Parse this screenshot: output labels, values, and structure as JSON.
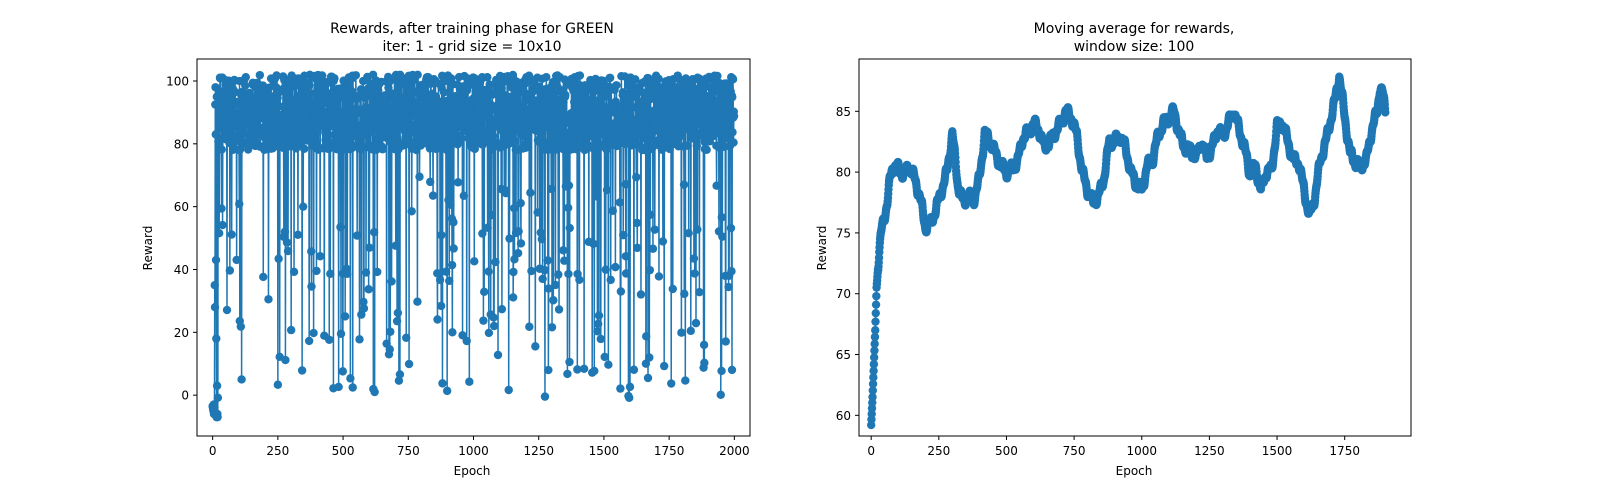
{
  "chart_data": [
    {
      "type": "line",
      "title_line1": "Rewards, after training phase for GREEN",
      "title_line2": "iter: 1 - grid size = 10x10",
      "xlabel": "Epoch",
      "ylabel": "Reward",
      "xlim": [
        -60,
        2060
      ],
      "ylim": [
        -13,
        107
      ],
      "xticks": [
        0,
        250,
        500,
        750,
        1000,
        1250,
        1500,
        1750,
        2000
      ],
      "yticks": [
        0,
        20,
        40,
        60,
        80,
        100
      ],
      "color": "#1f77b4",
      "marker": "circle",
      "n_points": 2000,
      "series": [
        {
          "x_step": 1,
          "seed": 12345,
          "early_values": [
            -3.5,
            -4,
            -4.5,
            -5,
            -3,
            -6,
            -5.5,
            -4,
            35,
            28,
            92.5,
            98,
            83,
            43,
            18,
            -7,
            95,
            3,
            -6,
            -7
          ],
          "high_range": [
            78,
            102
          ],
          "dip_probability": 0.12,
          "dip_range": [
            -2,
            70
          ]
        }
      ]
    },
    {
      "type": "line",
      "title_line1": "Moving average for rewards,",
      "title_line2": "window size: 100",
      "xlabel": "Epoch",
      "ylabel": "Reward",
      "xlim": [
        -45,
        1995
      ],
      "ylim": [
        58.3,
        89.3
      ],
      "xticks": [
        0,
        250,
        500,
        750,
        1000,
        1250,
        1500,
        1750
      ],
      "yticks": [
        60,
        65,
        70,
        75,
        80,
        85
      ],
      "color": "#1f77b4",
      "marker": "circle",
      "series": [
        {
          "x_step": 1,
          "anchor_x": [
            0,
            5,
            10,
            15,
            20,
            30,
            40,
            50,
            60,
            70,
            80,
            100,
            120,
            140,
            160,
            180,
            200,
            220,
            240,
            260,
            280,
            300,
            320,
            340,
            360,
            380,
            400,
            420,
            440,
            460,
            480,
            500,
            520,
            540,
            560,
            580,
            600,
            620,
            640,
            660,
            680,
            700,
            720,
            740,
            760,
            780,
            800,
            820,
            840,
            860,
            880,
            900,
            920,
            940,
            960,
            980,
            1000,
            1020,
            1040,
            1060,
            1080,
            1100,
            1120,
            1140,
            1160,
            1180,
            1200,
            1220,
            1240,
            1260,
            1280,
            1300,
            1320,
            1340,
            1360,
            1380,
            1400,
            1420,
            1440,
            1460,
            1480,
            1500,
            1520,
            1540,
            1560,
            1580,
            1600,
            1620,
            1640,
            1660,
            1680,
            1700,
            1715,
            1730,
            1750,
            1770,
            1790,
            1810,
            1830,
            1850,
            1870,
            1880,
            1890,
            1900
          ],
          "anchor_y": [
            59.2,
            61.5,
            64.2,
            67,
            70.5,
            73.5,
            75.5,
            76.5,
            77.5,
            79.5,
            80.5,
            80.3,
            79.8,
            80.5,
            79.5,
            78,
            75.5,
            75.8,
            77,
            78.5,
            80,
            83.2,
            79,
            77.5,
            78,
            77.8,
            79.5,
            83.2,
            82.5,
            81.5,
            80.5,
            80,
            80.3,
            80.8,
            82.8,
            83.3,
            84,
            83.5,
            82,
            82.5,
            83.3,
            84,
            85,
            84.5,
            83,
            80,
            78.5,
            77.5,
            78,
            79.5,
            82.5,
            82.5,
            83,
            82,
            80,
            79,
            78.5,
            80.5,
            81,
            83,
            84,
            84.5,
            85,
            83,
            82,
            81.8,
            81.2,
            82.5,
            81.2,
            82,
            83.5,
            83,
            84,
            85,
            83.5,
            82,
            79.8,
            80.5,
            78.5,
            80,
            80.2,
            83.8,
            84,
            82.5,
            81,
            80.8,
            78.5,
            76.3,
            78,
            81,
            82.5,
            84.5,
            86,
            88,
            84.5,
            81.5,
            80.8,
            80.5,
            81,
            83.5,
            85,
            87,
            86.5,
            85
          ]
        }
      ]
    }
  ]
}
